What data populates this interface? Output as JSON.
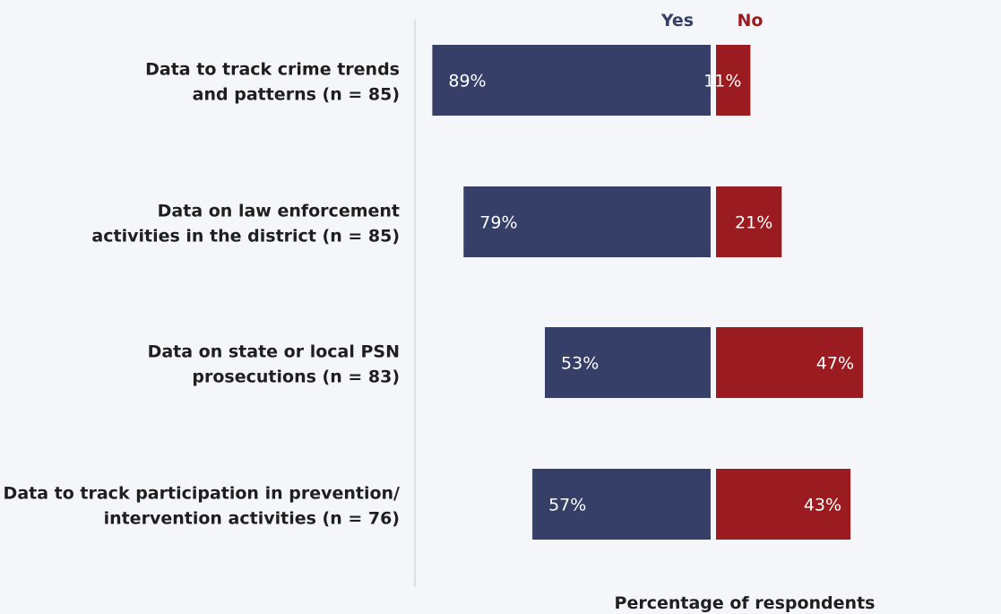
{
  "chart_data": {
    "type": "bar",
    "orientation": "horizontal-diverging",
    "categories": [
      [
        "Data to track crime trends",
        "and patterns (n = 85)"
      ],
      [
        "Data on law enforcement",
        "activities in the district (n = 85)"
      ],
      [
        "Data on state or local PSN",
        "prosecutions (n = 83)"
      ],
      [
        "Data to track participation in prevention/",
        "intervention activities (n = 76)"
      ]
    ],
    "series": [
      {
        "name": "Yes",
        "values": [
          89,
          79,
          53,
          57
        ],
        "labels": [
          "89%",
          "79%",
          "53%",
          "57%"
        ],
        "color": "#353f67"
      },
      {
        "name": "No",
        "values": [
          11,
          21,
          47,
          43
        ],
        "labels": [
          "11%",
          "21%",
          "47%",
          "43%"
        ],
        "color": "#9b1c20"
      }
    ],
    "xlabel": "Percentage of respondents",
    "legend_position": "top"
  }
}
